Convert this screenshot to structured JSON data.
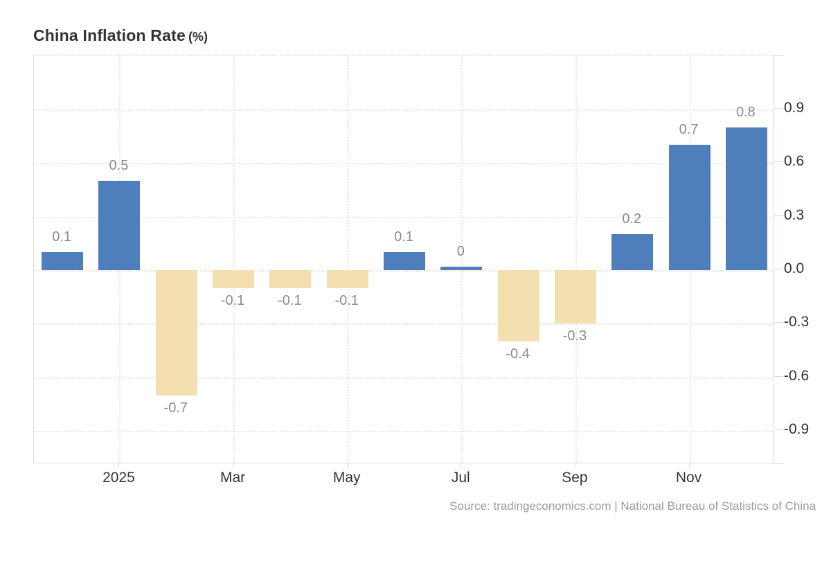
{
  "title": {
    "main": "China Inflation Rate",
    "unit": "(%)"
  },
  "source_text": "Source: tradingeconomics.com | National Bureau of Statistics of China",
  "colors": {
    "positive_bar": "#4e7ebc",
    "negative_bar": "#f4dfb1",
    "grid": "#e6e6e6",
    "axis_border": "#dcdcdc",
    "value_label": "#8a8a8a",
    "axis_label": "#333333",
    "source_text": "#9a9a9a"
  },
  "chart_data": {
    "type": "bar",
    "title": "China Inflation Rate (%)",
    "values": [
      0.1,
      0.5,
      -0.7,
      -0.1,
      -0.1,
      -0.1,
      0.1,
      0,
      -0.4,
      -0.3,
      0.2,
      0.7,
      0.8
    ],
    "bar_labels": [
      "0.1",
      "0.5",
      "-0.7",
      "-0.1",
      "-0.1",
      "-0.1",
      "0.1",
      "0",
      "-0.4",
      "-0.3",
      "0.2",
      "0.7",
      "0.8"
    ],
    "x_tick_labels": [
      {
        "label": "2025",
        "bar_index": 1
      },
      {
        "label": "Mar",
        "bar_index": 3
      },
      {
        "label": "May",
        "bar_index": 5
      },
      {
        "label": "Jul",
        "bar_index": 7
      },
      {
        "label": "Sep",
        "bar_index": 9
      },
      {
        "label": "Nov",
        "bar_index": 11
      }
    ],
    "y_ticks": [
      0.9,
      0.6,
      0.3,
      0.0,
      -0.3,
      -0.6,
      -0.9
    ],
    "y_tick_labels": [
      "0.9",
      "0.6",
      "0.3",
      "0.0",
      "-0.3",
      "-0.6",
      "-0.9"
    ],
    "ylim": [
      -1.1,
      1.2
    ],
    "xlabel": "",
    "ylabel": "",
    "grid": "on",
    "legend": "none",
    "bar_color_positive": "#4e7ebc",
    "bar_color_negative": "#f4dfb1"
  }
}
